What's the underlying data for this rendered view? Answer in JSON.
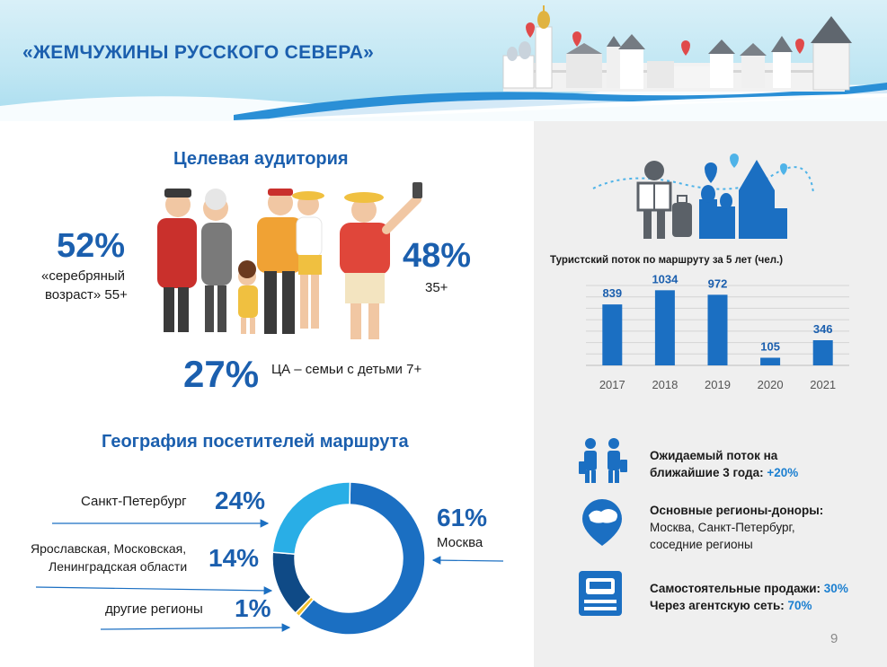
{
  "header": {
    "title": "«ЖЕМЧУЖИНЫ  РУССКОГО СЕВЕРА»"
  },
  "audience": {
    "title": "Целевая аудитория",
    "silver_pct": "52%",
    "silver_line1": "«серебряный",
    "silver_line2": "возраст» 55+",
    "young_pct": "48%",
    "young_label": "35+",
    "family_pct": "27%",
    "family_label": "ЦА – семьи с детьми  7+"
  },
  "chart_data": {
    "type": "bar",
    "title": "Туристский  поток по маршруту за 5 лет (чел.)",
    "categories": [
      "2017",
      "2018",
      "2019",
      "2020",
      "2021"
    ],
    "values": [
      839,
      1034,
      972,
      105,
      346
    ],
    "ylim": [
      0,
      1100
    ],
    "grid": true,
    "bar_color": "#1b6fc2"
  },
  "geography": {
    "title": "География посетителей маршрута",
    "segments": [
      {
        "label": "Москва",
        "pct": "61%",
        "value": 61,
        "color": "#1b6fc2"
      },
      {
        "label": "Санкт-Петербург",
        "pct": "24%",
        "value": 24,
        "color": "#29aee6"
      },
      {
        "label_line1": "Ярославская, Московская,",
        "label_line2": "Ленинградская области",
        "pct": "14%",
        "value": 14,
        "color": "#0f4a86"
      },
      {
        "label": "другие регионы",
        "pct": "1%",
        "value": 1,
        "color": "#f2c12e"
      }
    ]
  },
  "info": {
    "flow_line1": "Ожидаемый поток на",
    "flow_line2": "ближайшие 3 года: ",
    "flow_value": "+20%",
    "regions_title": "Основные регионы-доноры:",
    "regions_line1": "Москва,  Санкт-Петербург,",
    "regions_line2": "соседние регионы",
    "sales_label": "Самостоятельные продажи: ",
    "sales_value": "30%",
    "agency_label": "Через агентскую сеть: ",
    "agency_value": "70%"
  },
  "page": {
    "number": "9"
  },
  "colors": {
    "primary": "#1b5fae",
    "accent": "#1b7fd0",
    "panel": "#efefef"
  }
}
